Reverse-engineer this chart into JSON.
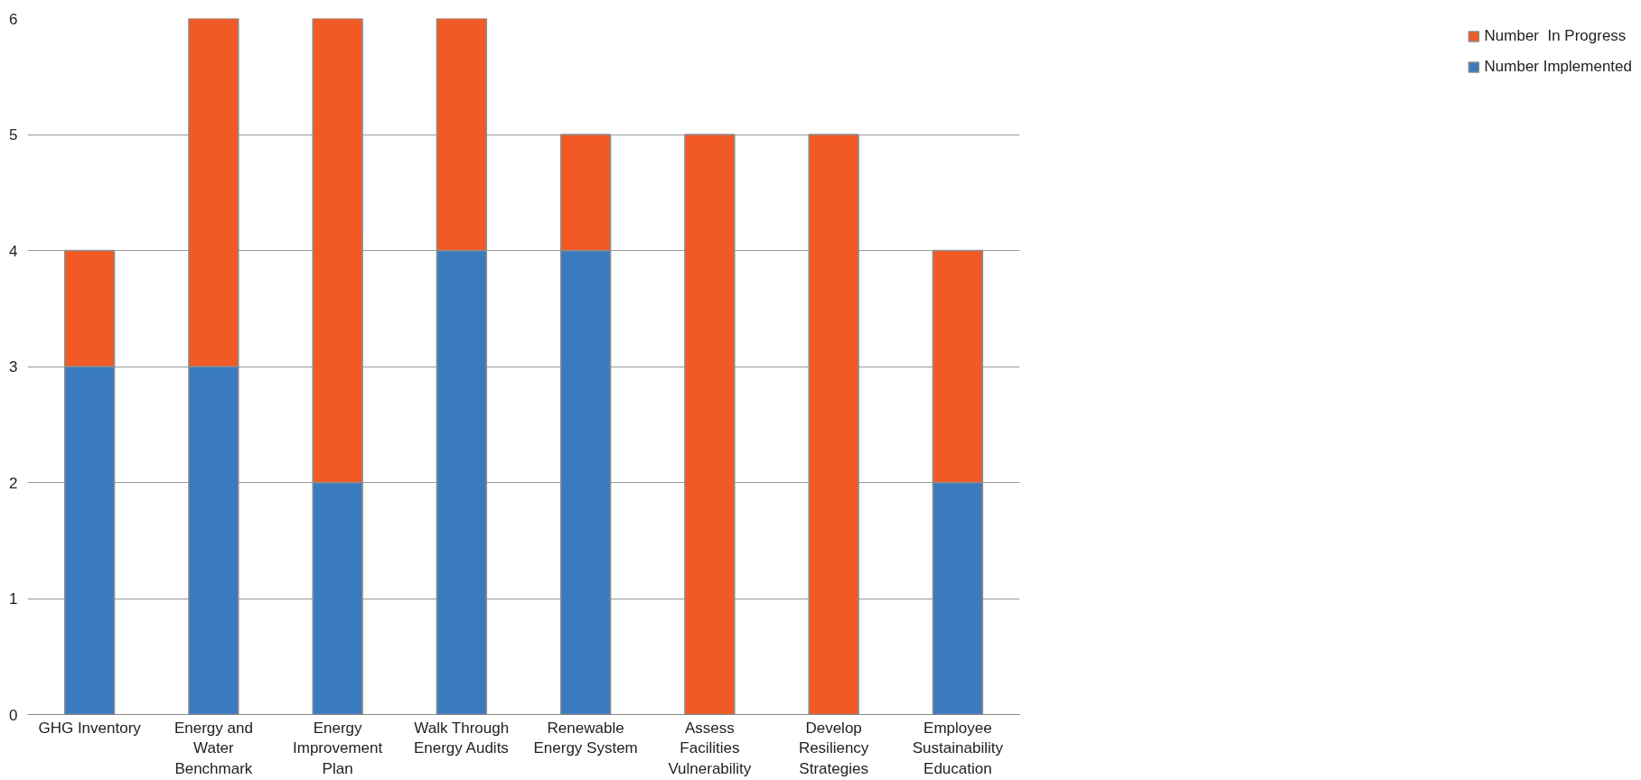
{
  "chart_data": {
    "type": "bar",
    "stacked": true,
    "categories": [
      "GHG Inventory",
      "Energy and Water Benchmark",
      "Energy Improvement Plan",
      "Walk Through Energy Audits",
      "Renewable Energy System",
      "Assess Facilities Vulnerability",
      "Develop Resiliency Strategies",
      "Employee Sustainability Education"
    ],
    "series": [
      {
        "name": "Number Implemented",
        "color": "#3a7abf",
        "values": [
          3,
          3,
          2,
          4,
          4,
          0,
          0,
          2
        ]
      },
      {
        "name": "Number  In Progress",
        "color": "#f15a24",
        "values": [
          1,
          3,
          4,
          2,
          1,
          5,
          5,
          2
        ]
      }
    ],
    "ylim": [
      0,
      6
    ],
    "yticks": [
      0,
      1,
      2,
      3,
      4,
      5,
      6
    ],
    "grid": "y",
    "legend": "right"
  }
}
